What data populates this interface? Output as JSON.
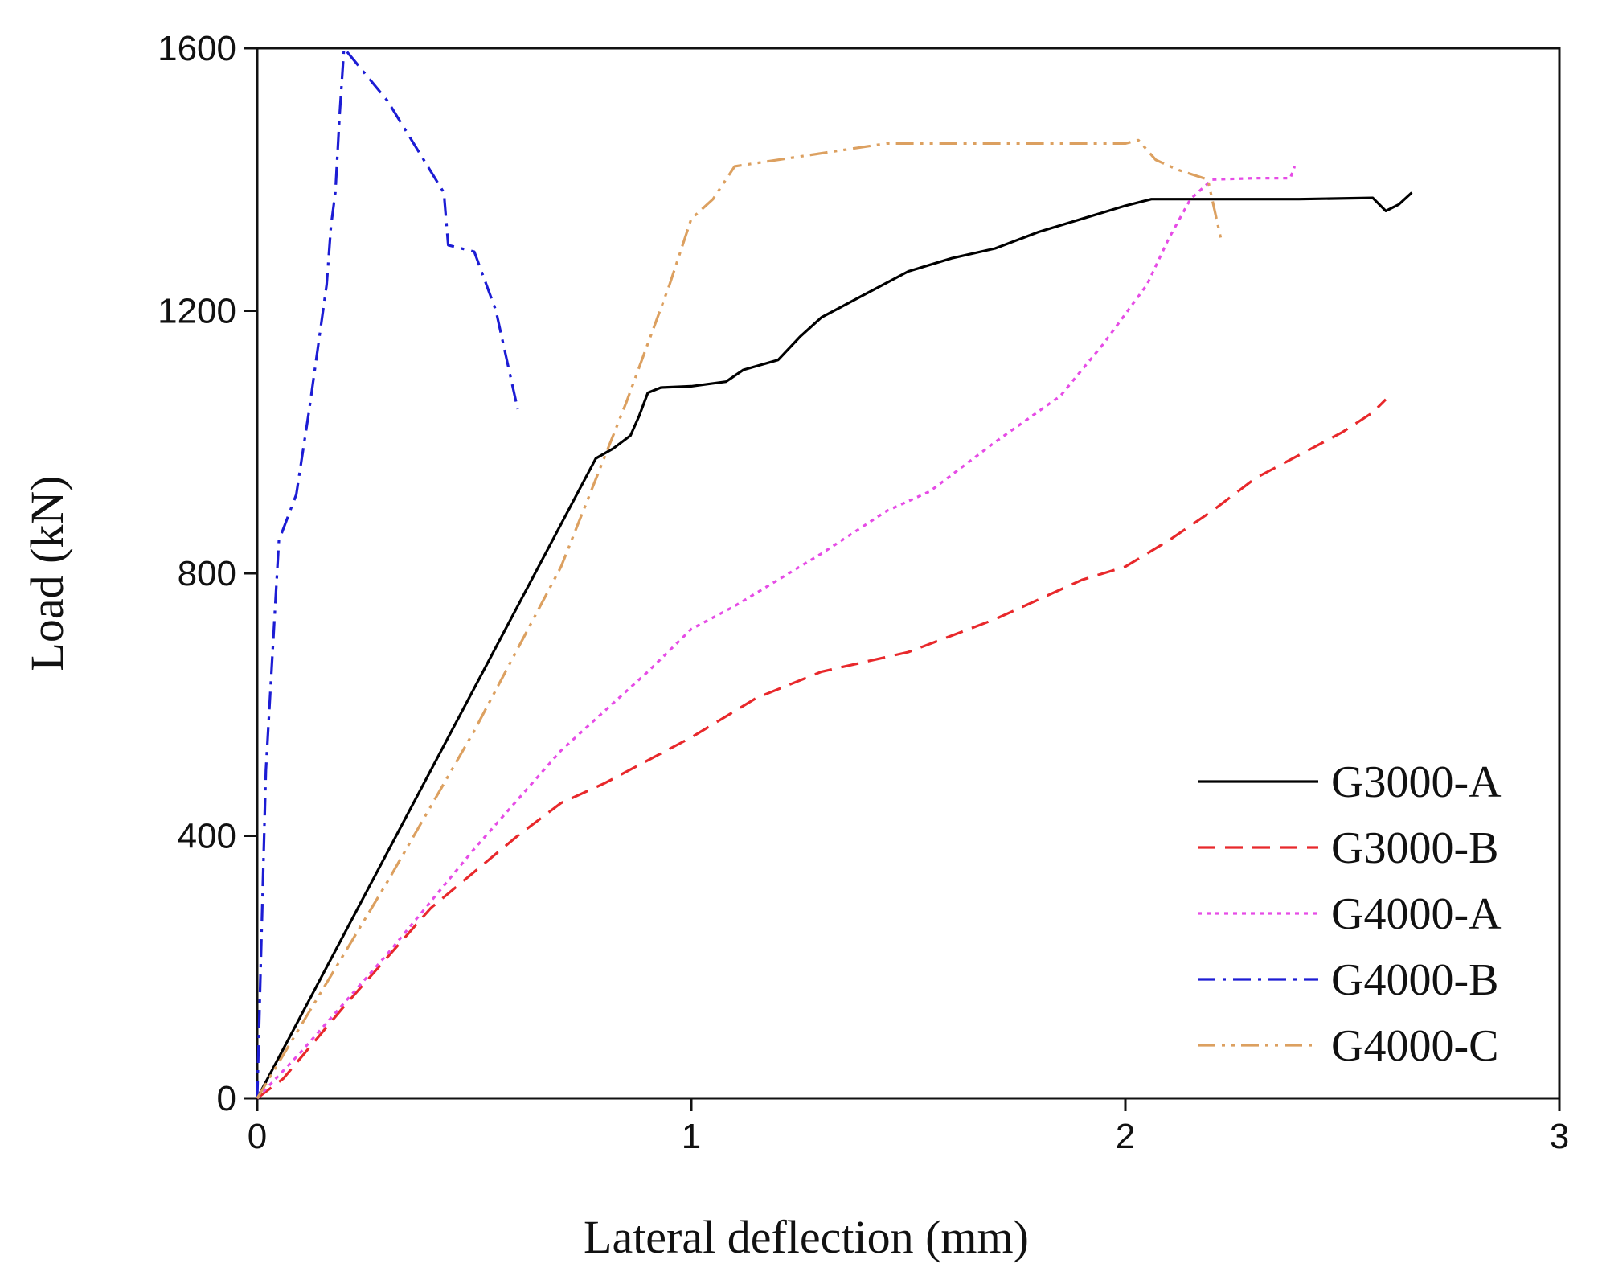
{
  "chart_data": {
    "type": "line",
    "title": "",
    "xlabel": "Lateral deflection (mm)",
    "ylabel": "Load (kN)",
    "xlim": [
      0,
      3
    ],
    "ylim": [
      0,
      1600
    ],
    "xticks": [
      0,
      1,
      2,
      3
    ],
    "yticks": [
      0,
      400,
      800,
      1200,
      1600
    ],
    "grid": false,
    "legend_position": "bottom-right",
    "series": [
      {
        "name": "G3000-A",
        "color": "#000000",
        "dash": "solid",
        "points": [
          [
            0,
            0
          ],
          [
            0.78,
            975
          ],
          [
            0.82,
            990
          ],
          [
            0.86,
            1010
          ],
          [
            0.88,
            1040
          ],
          [
            0.9,
            1075
          ],
          [
            0.93,
            1083
          ],
          [
            1.0,
            1085
          ],
          [
            1.08,
            1092
          ],
          [
            1.12,
            1110
          ],
          [
            1.2,
            1125
          ],
          [
            1.25,
            1160
          ],
          [
            1.3,
            1190
          ],
          [
            1.4,
            1225
          ],
          [
            1.5,
            1260
          ],
          [
            1.6,
            1280
          ],
          [
            1.7,
            1295
          ],
          [
            1.8,
            1320
          ],
          [
            1.9,
            1340
          ],
          [
            2.0,
            1360
          ],
          [
            2.06,
            1370
          ],
          [
            2.2,
            1370
          ],
          [
            2.4,
            1370
          ],
          [
            2.57,
            1372
          ],
          [
            2.6,
            1352
          ],
          [
            2.63,
            1362
          ],
          [
            2.66,
            1380
          ]
        ]
      },
      {
        "name": "G3000-B",
        "color": "#e8282b",
        "dash": "dashed",
        "points": [
          [
            0,
            0
          ],
          [
            0.06,
            30
          ],
          [
            0.2,
            140
          ],
          [
            0.4,
            290
          ],
          [
            0.6,
            400
          ],
          [
            0.7,
            450
          ],
          [
            0.8,
            480
          ],
          [
            1.0,
            550
          ],
          [
            1.15,
            610
          ],
          [
            1.3,
            650
          ],
          [
            1.5,
            680
          ],
          [
            1.7,
            730
          ],
          [
            1.9,
            790
          ],
          [
            2.0,
            810
          ],
          [
            2.1,
            850
          ],
          [
            2.2,
            895
          ],
          [
            2.3,
            945
          ],
          [
            2.4,
            980
          ],
          [
            2.5,
            1015
          ],
          [
            2.57,
            1045
          ],
          [
            2.6,
            1065
          ]
        ]
      },
      {
        "name": "G4000-A",
        "color": "#e64ce6",
        "dash": "dotted",
        "points": [
          [
            0,
            0
          ],
          [
            0.1,
            70
          ],
          [
            0.3,
            220
          ],
          [
            0.5,
            380
          ],
          [
            0.7,
            530
          ],
          [
            0.9,
            650
          ],
          [
            1.0,
            715
          ],
          [
            1.1,
            750
          ],
          [
            1.3,
            830
          ],
          [
            1.45,
            895
          ],
          [
            1.55,
            925
          ],
          [
            1.7,
            1000
          ],
          [
            1.85,
            1070
          ],
          [
            1.95,
            1150
          ],
          [
            2.05,
            1240
          ],
          [
            2.1,
            1310
          ],
          [
            2.15,
            1370
          ],
          [
            2.2,
            1400
          ],
          [
            2.3,
            1402
          ],
          [
            2.38,
            1402
          ],
          [
            2.39,
            1420
          ]
        ]
      },
      {
        "name": "G4000-B",
        "color": "#1c1cd4",
        "dash": "dashdot",
        "points": [
          [
            0,
            0
          ],
          [
            0.02,
            500
          ],
          [
            0.05,
            850
          ],
          [
            0.09,
            920
          ],
          [
            0.12,
            1050
          ],
          [
            0.16,
            1240
          ],
          [
            0.17,
            1330
          ],
          [
            0.18,
            1380
          ],
          [
            0.19,
            1500
          ],
          [
            0.2,
            1600
          ],
          [
            0.3,
            1520
          ],
          [
            0.43,
            1380
          ],
          [
            0.44,
            1300
          ],
          [
            0.5,
            1290
          ],
          [
            0.55,
            1200
          ],
          [
            0.6,
            1050
          ]
        ]
      },
      {
        "name": "G4000-C",
        "color": "#dca060",
        "dash": "dashdotdot",
        "points": [
          [
            0,
            0
          ],
          [
            0.3,
            330
          ],
          [
            0.5,
            560
          ],
          [
            0.7,
            810
          ],
          [
            0.85,
            1060
          ],
          [
            0.95,
            1240
          ],
          [
            1.0,
            1340
          ],
          [
            1.05,
            1370
          ],
          [
            1.1,
            1420
          ],
          [
            1.3,
            1440
          ],
          [
            1.45,
            1455
          ],
          [
            1.6,
            1455
          ],
          [
            1.8,
            1455
          ],
          [
            1.9,
            1455
          ],
          [
            2.0,
            1455
          ],
          [
            2.03,
            1460
          ],
          [
            2.07,
            1430
          ],
          [
            2.12,
            1415
          ],
          [
            2.19,
            1400
          ],
          [
            2.22,
            1310
          ]
        ]
      }
    ]
  }
}
